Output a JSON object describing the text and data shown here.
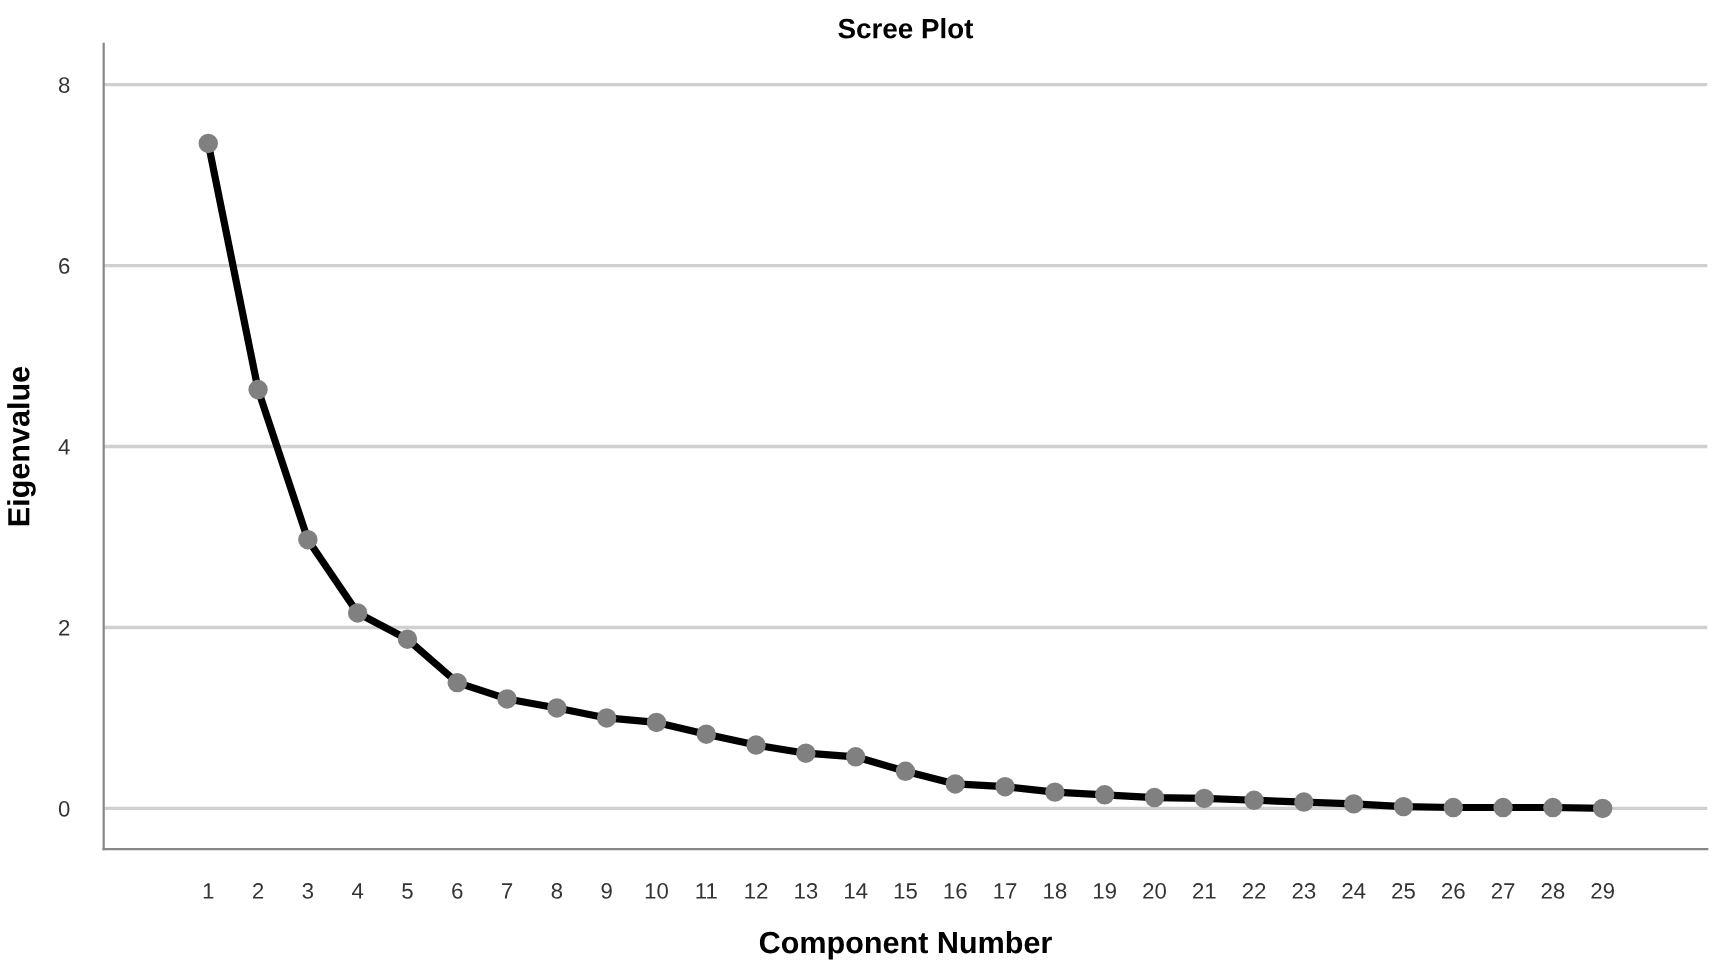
{
  "chart_data": {
    "type": "line",
    "title": "Scree Plot",
    "xlabel": "Component Number",
    "ylabel": "Eigenvalue",
    "categories": [
      "1",
      "2",
      "3",
      "4",
      "5",
      "6",
      "7",
      "8",
      "9",
      "10",
      "11",
      "12",
      "13",
      "14",
      "15",
      "16",
      "17",
      "18",
      "19",
      "20",
      "21",
      "22",
      "23",
      "24",
      "25",
      "26",
      "27",
      "28",
      "29"
    ],
    "series": [
      {
        "color": "#000000",
        "values": [
          7.35,
          4.63,
          2.97,
          2.16,
          1.87,
          1.39,
          1.21,
          1.11,
          1.0,
          0.95,
          0.82,
          0.7,
          0.61,
          0.57,
          0.41,
          0.27,
          0.24,
          0.18,
          0.15,
          0.12,
          0.11,
          0.09,
          0.07,
          0.05,
          0.02,
          0.01,
          0.01,
          0.01,
          0.0
        ]
      }
    ],
    "ylim": [
      -0.45,
      8.45
    ],
    "yticks": [
      0,
      2,
      4,
      6,
      8
    ],
    "grid": "y",
    "marker": "circle",
    "line_style": "solid",
    "legend": false
  }
}
